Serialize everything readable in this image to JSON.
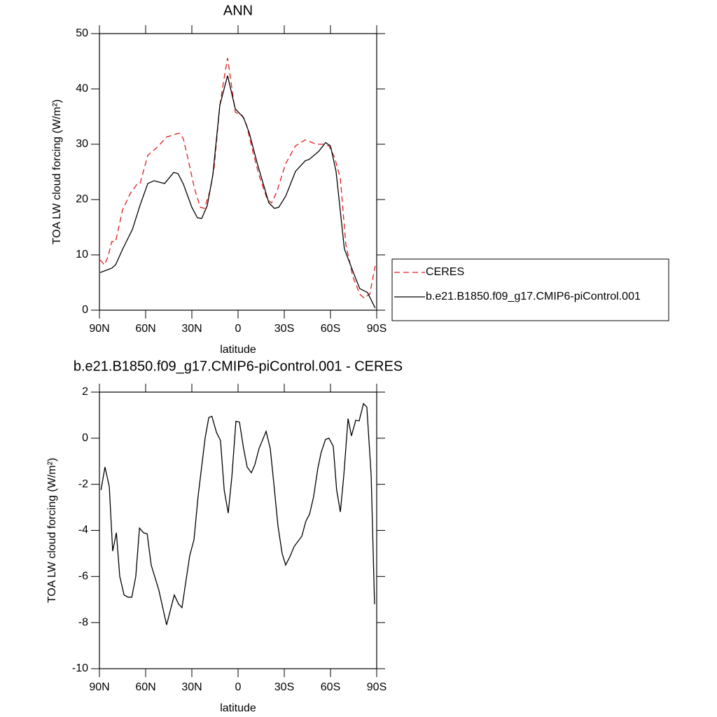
{
  "chart_data": [
    {
      "type": "line",
      "title": "ANN",
      "xlabel": "latitude",
      "ylabel": "TOA LW cloud forcing (W/m²)",
      "xlim": [
        90,
        -90
      ],
      "xticks": [
        {
          "value": 90,
          "label": "90N"
        },
        {
          "value": 60,
          "label": "60N"
        },
        {
          "value": 30,
          "label": "30N"
        },
        0,
        {
          "value": -30,
          "label": "30S"
        },
        {
          "value": -60,
          "label": "60S"
        },
        {
          "value": -90,
          "label": "90S"
        }
      ],
      "ylim": [
        0,
        50
      ],
      "yticks": [
        0,
        10,
        20,
        30,
        40,
        50
      ],
      "legend": "right",
      "series": [
        {
          "name": "CERES",
          "color": "#e41a1c",
          "dash": true,
          "x": [
            89.5,
            86.8,
            84.5,
            82,
            79.5,
            75,
            70,
            65.5,
            63.6,
            58.6,
            52.3,
            46.4,
            40.9,
            38.2,
            35.5,
            32.7,
            28.2,
            24.5,
            21.8,
            18.2,
            15.5,
            11.8,
            8.2,
            6.8,
            4.5,
            1.8,
            -2.7,
            -5.5,
            -10,
            -13.6,
            -19.1,
            -21.8,
            -25,
            -30.9,
            -37.3,
            -43.6,
            -50.9,
            -55.5,
            -59,
            -62.7,
            -66.4,
            -70,
            -74.5,
            -79,
            -81.8,
            -85.5,
            -89
          ],
          "values": [
            9.1,
            8.2,
            9.6,
            12.4,
            12.4,
            18.1,
            21.1,
            22.8,
            22.9,
            28,
            29.5,
            31.3,
            31.8,
            32,
            31,
            27.6,
            21.9,
            18.6,
            18.4,
            21.6,
            25.9,
            37.1,
            43.4,
            45.6,
            41.1,
            35.8,
            35.2,
            33.5,
            28.2,
            24.4,
            19.9,
            19.4,
            21.3,
            26.5,
            29.7,
            30.8,
            30,
            30,
            29.7,
            27.6,
            23.8,
            11.8,
            6.1,
            2.9,
            2.2,
            2.9,
            8
          ]
        },
        {
          "name": "b.e21.B1850.f09_g17.CMIP6-piControl.001",
          "color": "#000000",
          "dash": false,
          "x": [
            89.5,
            82,
            79.5,
            75,
            68.6,
            63.6,
            58.6,
            54.5,
            47.7,
            41.8,
            39,
            35.5,
            30,
            26.4,
            23.6,
            20,
            16.4,
            11.8,
            6.8,
            1.8,
            -3.6,
            -7.3,
            -12.7,
            -20,
            -23.6,
            -26.4,
            -30.9,
            -37.3,
            -43.6,
            -46.4,
            -52.3,
            -56.8,
            -60,
            -63.6,
            -69,
            -75,
            -79,
            -84,
            -89
          ],
          "values": [
            6.8,
            7.6,
            8.2,
            11,
            14.6,
            19,
            22.9,
            23.4,
            22.9,
            24.9,
            24.7,
            22.8,
            18.6,
            16.7,
            16.6,
            18.9,
            24.4,
            37.1,
            42.4,
            36.4,
            34.8,
            32,
            26.3,
            19.4,
            18.4,
            18.6,
            20.6,
            25.1,
            27,
            27.3,
            28.7,
            30.3,
            29.7,
            25.1,
            11.1,
            6.7,
            3.9,
            3.2,
            0.4
          ]
        }
      ]
    },
    {
      "type": "line",
      "title": "b.e21.B1850.f09_g17.CMIP6-piControl.001 - CERES",
      "xlabel": "latitude",
      "ylabel": "TOA LW cloud forcing (W/m²)",
      "xlim": [
        90,
        -90
      ],
      "xticks": [
        {
          "value": 90,
          "label": "90N"
        },
        {
          "value": 60,
          "label": "60N"
        },
        {
          "value": 30,
          "label": "30N"
        },
        0,
        {
          "value": -30,
          "label": "30S"
        },
        {
          "value": -60,
          "label": "60S"
        },
        {
          "value": -90,
          "label": "90S"
        }
      ],
      "ylim": [
        -10,
        2
      ],
      "yticks": [
        -10,
        -8,
        -6,
        -4,
        -2,
        0,
        2
      ],
      "series": [
        {
          "color": "#000000",
          "dash": false,
          "x": [
            89,
            86.4,
            83.6,
            81.4,
            79,
            76.8,
            74,
            71.4,
            69,
            66.4,
            64,
            61.4,
            59,
            56.4,
            51.4,
            46.4,
            41.4,
            38.6,
            36.4,
            31.4,
            28.6,
            26,
            21.4,
            19,
            17,
            14,
            11.4,
            9,
            6.4,
            4,
            1.4,
            -0.9,
            -3.6,
            -5.9,
            -8.6,
            -10.9,
            -13.6,
            -18.2,
            -20.9,
            -23.2,
            -25.9,
            -28.6,
            -30.9,
            -33.6,
            -36.4,
            -41.4,
            -44,
            -46.4,
            -49,
            -51.8,
            -54,
            -56.8,
            -59,
            -61.8,
            -64,
            -66.4,
            -68.6,
            -71.4,
            -73.6,
            -76.4,
            -78.6,
            -81.4,
            -83.6,
            -86.4,
            -88.6
          ],
          "values": [
            -2.25,
            -1.25,
            -2.1,
            -4.9,
            -4.1,
            -6,
            -6.8,
            -6.9,
            -6.9,
            -6,
            -3.9,
            -4.1,
            -4.15,
            -5.5,
            -6.6,
            -8.1,
            -6.8,
            -7.2,
            -7.35,
            -5.1,
            -4.4,
            -2.55,
            0,
            0.9,
            0.95,
            0.25,
            -0.1,
            -2.25,
            -3.25,
            -1.65,
            0.73,
            0.7,
            -0.45,
            -1.25,
            -1.5,
            -1.15,
            -0.45,
            0.3,
            -0.45,
            -1.95,
            -3.8,
            -5,
            -5.5,
            -5.15,
            -4.7,
            -4.25,
            -3.6,
            -3.3,
            -2.55,
            -1.3,
            -0.6,
            -0.05,
            0,
            -0.35,
            -2.25,
            -3.2,
            -1.65,
            0.85,
            0.1,
            0.78,
            0.75,
            1.5,
            1.35,
            -1.6,
            -7.2
          ]
        }
      ]
    }
  ]
}
